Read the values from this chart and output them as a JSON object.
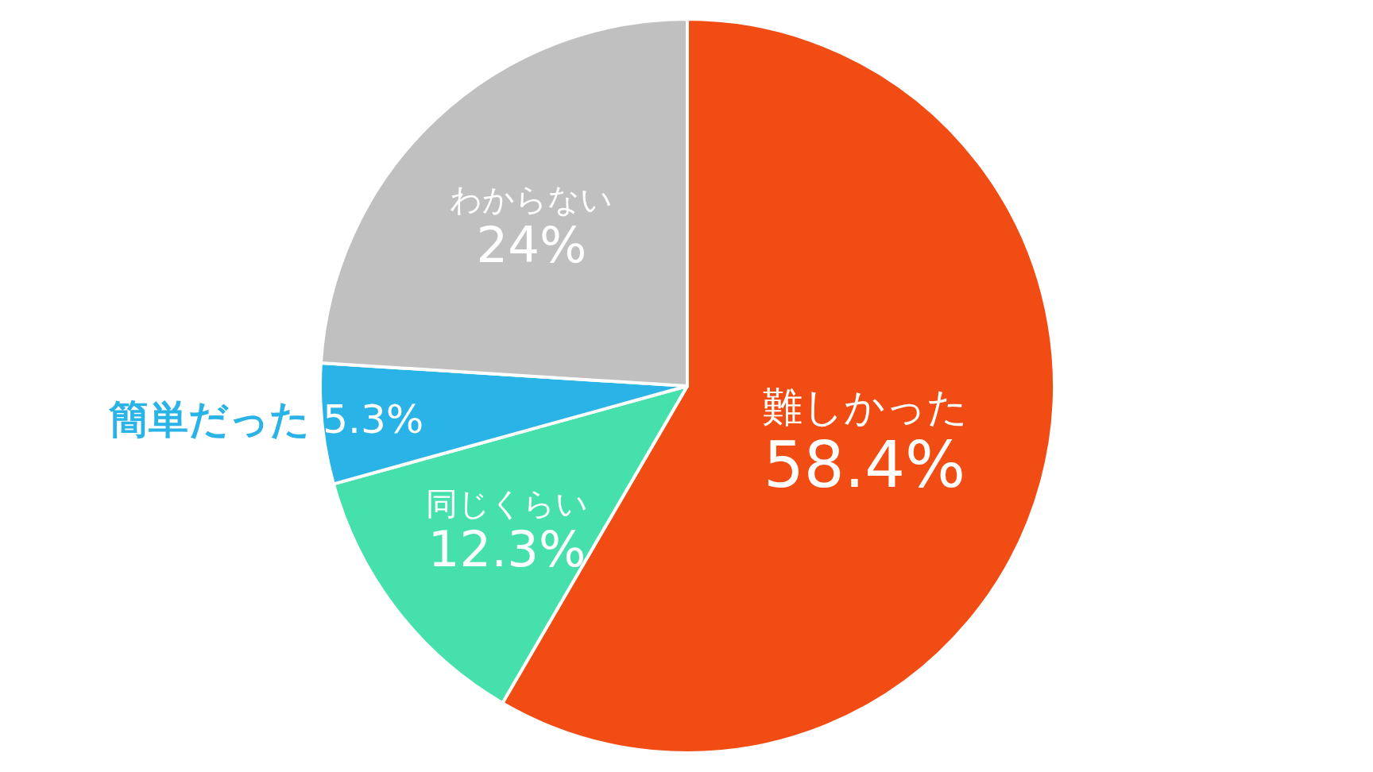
{
  "chart_data": {
    "type": "pie",
    "categories": [
      "難しかった",
      "同じくらい",
      "簡単だった",
      "わからない"
    ],
    "values": [
      58.4,
      12.3,
      5.3,
      24
    ],
    "value_labels": [
      "58.4%",
      "12.3%",
      "5.3%",
      "24%"
    ],
    "colors": [
      "#f24c15",
      "#46e0ad",
      "#29b3e6",
      "#c0c0c0"
    ]
  }
}
